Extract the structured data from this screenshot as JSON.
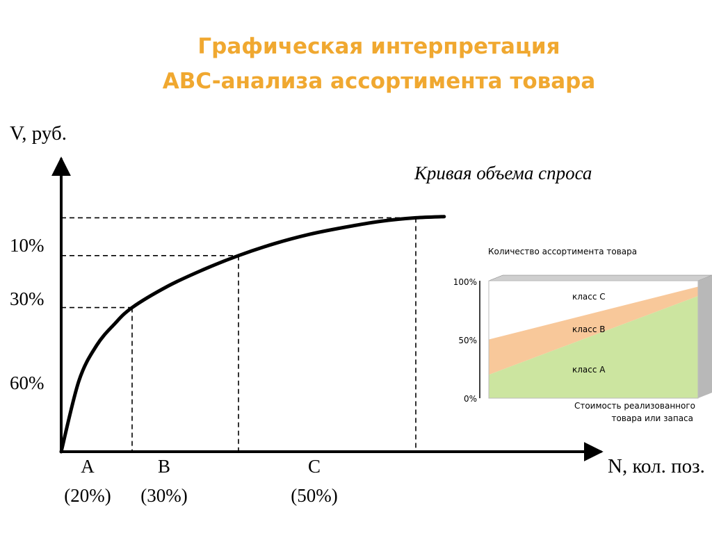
{
  "title": {
    "line1": "Графическая интерпретация",
    "line2": "ABC-анализа ассортимента товара"
  },
  "chart_data": [
    {
      "type": "line",
      "title": "",
      "ylabel": "V, руб.",
      "xlabel": "N, кол. поз.",
      "curve_label": "Кривая объема спроса",
      "y_tick_labels": [
        "10%",
        "30%",
        "60%"
      ],
      "classes": [
        {
          "name": "A",
          "share": "(20%)"
        },
        {
          "name": "B",
          "share": "(30%)"
        },
        {
          "name": "C",
          "share": "(50%)"
        }
      ],
      "x_boundaries": [
        0.2,
        0.5,
        1.0
      ],
      "curve": {
        "x": [
          0,
          0.05,
          0.1,
          0.15,
          0.2,
          0.3,
          0.4,
          0.5,
          0.6,
          0.7,
          0.8,
          0.9,
          1.0,
          1.08
        ],
        "y": [
          0,
          0.3,
          0.45,
          0.54,
          0.61,
          0.7,
          0.77,
          0.83,
          0.88,
          0.92,
          0.95,
          0.975,
          0.99,
          0.995
        ]
      },
      "grid": false
    },
    {
      "type": "area",
      "ylabel": "Количество ассортимента товара",
      "xlabel": "Стоимость реализованного товара или запаса",
      "y_ticks": [
        "100%",
        "50%",
        "0%"
      ],
      "series": [
        {
          "name": "класс А",
          "start": 20,
          "end": 87,
          "color": "#cce5a0"
        },
        {
          "name": "класс В",
          "start": 50,
          "end": 95,
          "color": "#f8c89a"
        },
        {
          "name": "класс С",
          "start": 100,
          "end": 100,
          "color": "#ffffff"
        }
      ]
    }
  ]
}
